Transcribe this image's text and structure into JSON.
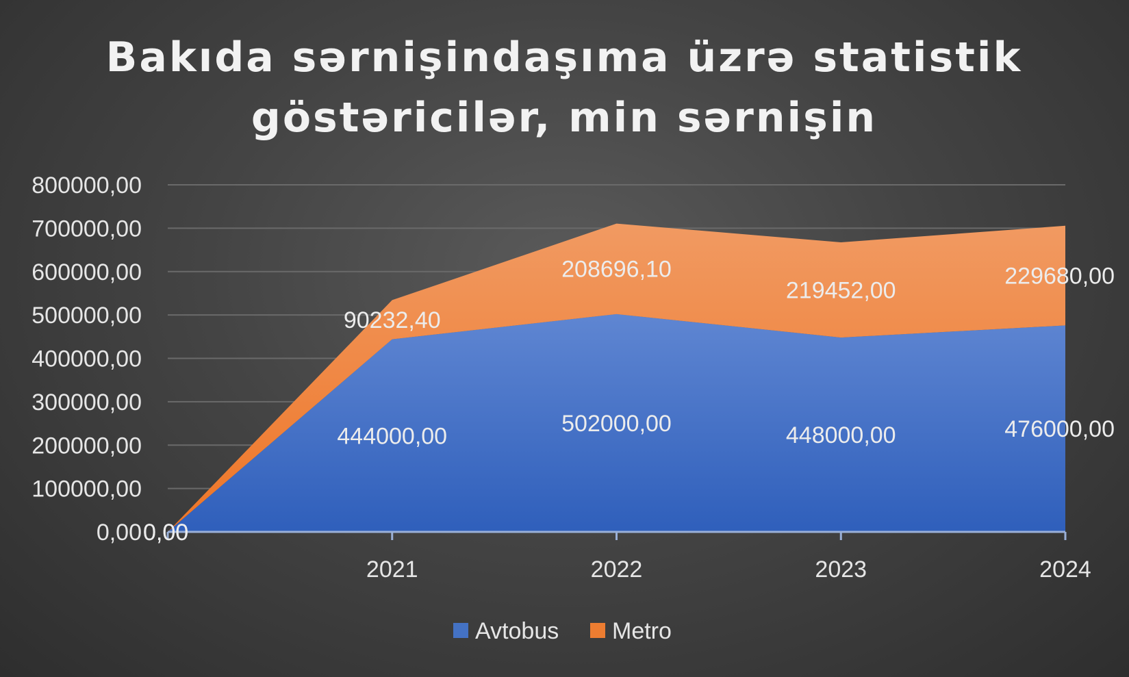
{
  "chart_data": {
    "type": "area",
    "stacked": true,
    "title_lines": [
      "Bakıda sərnişindaşıma üzrə statistik",
      "göstəricilər, min sərnişin"
    ],
    "categories": [
      "",
      "2021",
      "2022",
      "2023",
      "2024"
    ],
    "series": [
      {
        "name": "Avtobus",
        "color": "#4472c4",
        "values": [
          0,
          444000,
          502000,
          448000,
          476000
        ],
        "labels": [
          "0,00",
          "444000,00",
          "502000,00",
          "448000,00",
          "476000,00"
        ]
      },
      {
        "name": "Metro",
        "color": "#ed7d31",
        "values": [
          0,
          90232.4,
          208696.1,
          219452,
          229680
        ],
        "labels": [
          "0,00",
          "90232,40",
          "208696,10",
          "219452,00",
          "229680,00"
        ]
      }
    ],
    "y_ticks": [
      "0,00",
      "100000,00",
      "200000,00",
      "300000,00",
      "400000,00",
      "500000,00",
      "600000,00",
      "700000,00",
      "800000,00"
    ],
    "ylim": [
      0,
      800000
    ],
    "grid": true,
    "legend_position": "bottom"
  }
}
